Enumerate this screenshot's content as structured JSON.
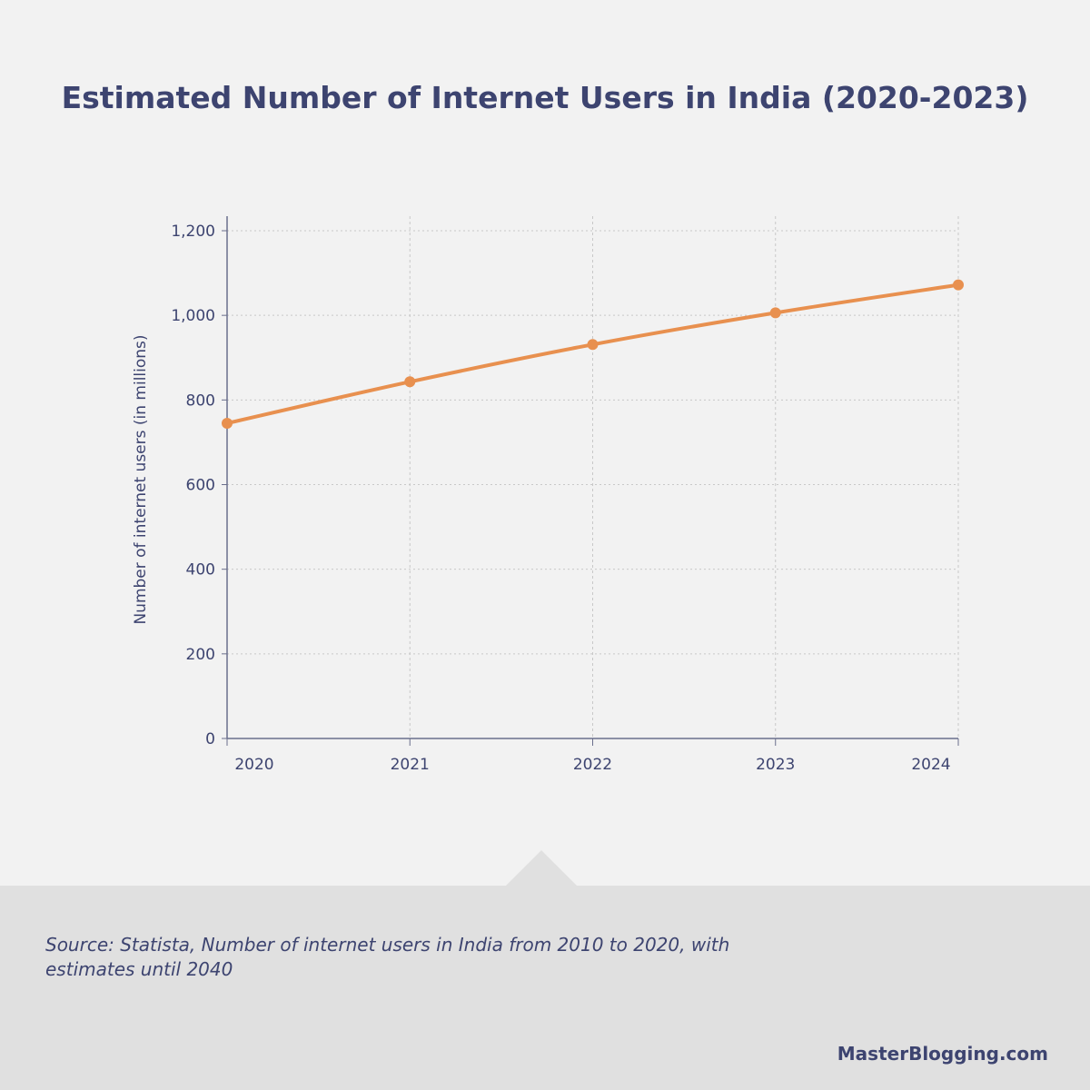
{
  "title": "Estimated Number of Internet Users in India (2020-2023)",
  "source": "Source: Statista, Number of internet users in India from 2010 to 2020, with estimates until 2040",
  "brand": "MasterBlogging.com",
  "chart_data": {
    "type": "line",
    "title": "Estimated Number of Internet Users in India (2020-2023)",
    "xlabel": "",
    "ylabel": "Number of internet users (in millions)",
    "categories": [
      "2020",
      "2021",
      "2022",
      "2023",
      "2024"
    ],
    "values": [
      745,
      843,
      931,
      1006,
      1072
    ],
    "ylim": [
      0,
      1200
    ],
    "yticks": [
      0,
      200,
      400,
      600,
      800,
      1000,
      1200
    ],
    "ytick_labels": [
      "0",
      "200",
      "400",
      "600",
      "800",
      "1,000",
      "1,200"
    ],
    "grid": true,
    "smooth": true,
    "color": "#e8904f"
  }
}
